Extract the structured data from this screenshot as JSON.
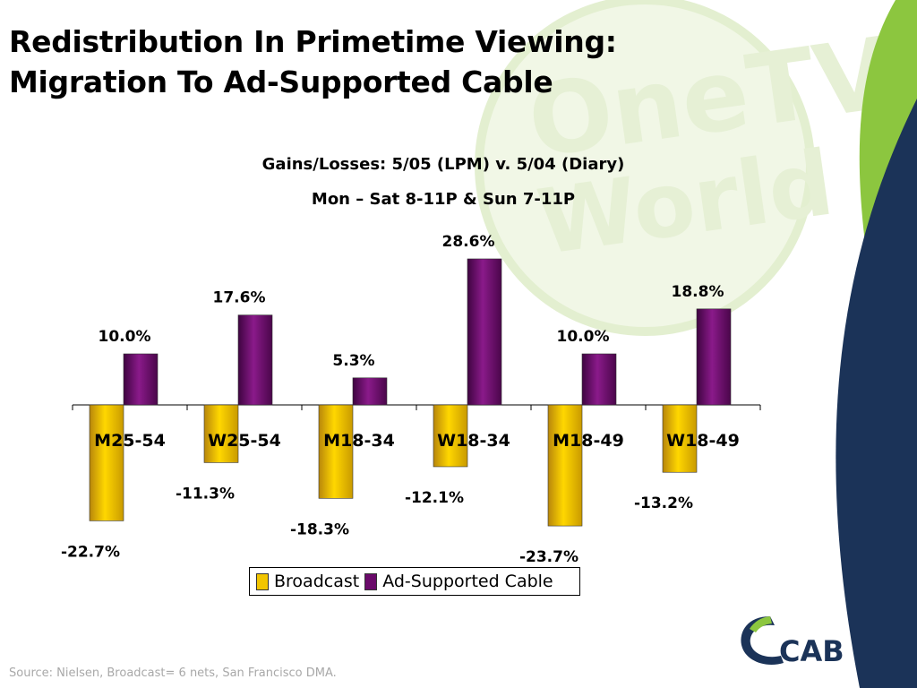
{
  "slide": {
    "title_line1": "Redistribution In Primetime Viewing:",
    "title_line2": "Migration To Ad-Supported Cable",
    "source": "Source:  Nielsen, Broadcast= 6 nets, San Francisco DMA."
  },
  "watermark": {
    "line1": "OneTV",
    "line2": "World"
  },
  "logo": {
    "text": "CAB"
  },
  "colors": {
    "broadcast": "#F2C500",
    "cable": "#6A0A6A",
    "green_band": "#8CC63F",
    "navy_band": "#1B3358"
  },
  "chart_data": {
    "type": "bar",
    "title": "Gains/Losses: 5/05 (LPM) v. 5/04 (Diary)",
    "subtitle": "Mon – Sat 8-11P & Sun 7-11P",
    "categories": [
      "M25-54",
      "W25-54",
      "M18-34",
      "W18-34",
      "M18-49",
      "W18-49"
    ],
    "series": [
      {
        "name": "Broadcast",
        "values": [
          -22.7,
          -11.3,
          -18.3,
          -12.1,
          -23.7,
          -13.2
        ],
        "labels": [
          "-22.7%",
          "-11.3%",
          "-18.3%",
          "-12.1%",
          "-23.7%",
          "-13.2%"
        ]
      },
      {
        "name": "Ad-Supported Cable",
        "values": [
          10.0,
          17.6,
          5.3,
          28.6,
          10.0,
          18.8
        ],
        "labels": [
          "10.0%",
          "17.6%",
          "5.3%",
          "28.6%",
          "10.0%",
          "18.8%"
        ]
      }
    ],
    "legend": "bottom-center",
    "grid": false
  }
}
